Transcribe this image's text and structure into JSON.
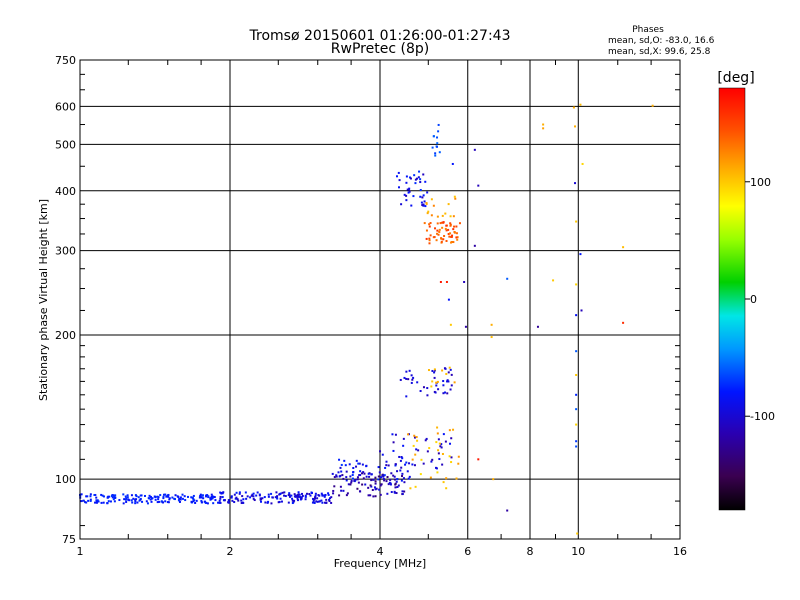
{
  "chart_data": {
    "type": "scatter",
    "title": "Tromsø 20150601 01:26:00-01:27:43",
    "subtitle": "RwPretec (8p)",
    "xlabel": "Frequency [MHz]",
    "ylabel": "Stationary phase Virtual Height [km]",
    "x_scale": "log",
    "y_scale": "log",
    "xlim": [
      1,
      16
    ],
    "ylim": [
      75,
      750
    ],
    "x_ticks": [
      1,
      2,
      4,
      6,
      8,
      10,
      16
    ],
    "x_tick_labels": [
      "1",
      "2",
      "4",
      "6",
      "8",
      "10",
      "16"
    ],
    "y_ticks": [
      75,
      100,
      200,
      300,
      400,
      500,
      600,
      750
    ],
    "y_tick_labels": [
      "75",
      "100",
      "200",
      "300",
      "400",
      "500",
      "600",
      "750"
    ],
    "grid": true,
    "info": {
      "heading": "Phases",
      "line_o": "mean, sd,O: -83.0, 16.6",
      "line_x": "mean, sd,X:  99.6, 25.8"
    },
    "colorbar": {
      "label": "[deg]",
      "ticks": [
        100,
        0,
        -100
      ],
      "tick_labels": [
        "100",
        "0",
        "-100"
      ],
      "range": [
        -180,
        180
      ]
    },
    "clusters": [
      {
        "f": [
          1.0,
          1.9
        ],
        "h": [
          89,
          93
        ],
        "phase": [
          -85,
          -70
        ],
        "n": 180
      },
      {
        "f": [
          1.9,
          3.2
        ],
        "h": [
          89,
          94
        ],
        "phase": [
          -110,
          -75
        ],
        "n": 160
      },
      {
        "f": [
          3.2,
          4.5
        ],
        "h": [
          92,
          103
        ],
        "phase": [
          -140,
          -90
        ],
        "n": 90
      },
      {
        "f": [
          3.3,
          4.6
        ],
        "h": [
          99,
          110
        ],
        "phase": [
          -110,
          -70
        ],
        "n": 60
      },
      {
        "f": [
          4.0,
          5.6
        ],
        "h": [
          104,
          125
        ],
        "phase": [
          -120,
          -80
        ],
        "n": 40
      },
      {
        "f": [
          4.4,
          5.6
        ],
        "h": [
          148,
          172
        ],
        "phase": [
          -120,
          -85
        ],
        "n": 40
      },
      {
        "f": [
          4.3,
          5.0
        ],
        "h": [
          370,
          440
        ],
        "phase": [
          -110,
          -70
        ],
        "n": 40
      },
      {
        "f": [
          4.9,
          5.8
        ],
        "h": [
          310,
          345
        ],
        "phase": [
          125,
          160
        ],
        "n": 60
      },
      {
        "f": [
          4.9,
          5.7
        ],
        "h": [
          350,
          390
        ],
        "phase": [
          100,
          130
        ],
        "n": 15
      },
      {
        "f": [
          4.5,
          5.8
        ],
        "h": [
          95,
          130
        ],
        "phase": [
          90,
          120
        ],
        "n": 30
      },
      {
        "f": [
          5.1,
          5.3
        ],
        "h": [
          470,
          550
        ],
        "phase": [
          -70,
          -55
        ],
        "n": 12
      },
      {
        "f": [
          5.0,
          5.9
        ],
        "h": [
          155,
          180
        ],
        "phase": [
          90,
          115
        ],
        "n": 10
      }
    ],
    "points": [
      {
        "x": 5.3,
        "y": 258,
        "phase": 170
      },
      {
        "x": 5.45,
        "y": 258,
        "phase": 165
      },
      {
        "x": 5.9,
        "y": 258,
        "phase": -110
      },
      {
        "x": 5.6,
        "y": 455,
        "phase": -80
      },
      {
        "x": 5.5,
        "y": 237,
        "phase": -80
      },
      {
        "x": 5.55,
        "y": 210,
        "phase": 100
      },
      {
        "x": 5.95,
        "y": 208,
        "phase": -120
      },
      {
        "x": 6.2,
        "y": 487,
        "phase": -110
      },
      {
        "x": 6.3,
        "y": 410,
        "phase": -110
      },
      {
        "x": 6.2,
        "y": 307,
        "phase": -120
      },
      {
        "x": 6.3,
        "y": 110,
        "phase": 170
      },
      {
        "x": 6.7,
        "y": 210,
        "phase": 110
      },
      {
        "x": 6.7,
        "y": 198,
        "phase": 105
      },
      {
        "x": 6.75,
        "y": 100,
        "phase": 110
      },
      {
        "x": 7.2,
        "y": 262,
        "phase": -60
      },
      {
        "x": 7.2,
        "y": 86,
        "phase": -120
      },
      {
        "x": 8.3,
        "y": 208,
        "phase": -125
      },
      {
        "x": 8.5,
        "y": 550,
        "phase": 110
      },
      {
        "x": 8.5,
        "y": 540,
        "phase": 115
      },
      {
        "x": 8.9,
        "y": 260,
        "phase": 100
      },
      {
        "x": 9.8,
        "y": 597,
        "phase": 110
      },
      {
        "x": 9.85,
        "y": 545,
        "phase": 110
      },
      {
        "x": 9.85,
        "y": 415,
        "phase": -100
      },
      {
        "x": 9.9,
        "y": 345,
        "phase": 100
      },
      {
        "x": 9.9,
        "y": 255,
        "phase": 95
      },
      {
        "x": 9.9,
        "y": 220,
        "phase": -85
      },
      {
        "x": 9.9,
        "y": 185,
        "phase": -60
      },
      {
        "x": 9.9,
        "y": 165,
        "phase": 100
      },
      {
        "x": 9.9,
        "y": 150,
        "phase": -75
      },
      {
        "x": 9.9,
        "y": 140,
        "phase": -60
      },
      {
        "x": 9.9,
        "y": 130,
        "phase": 95
      },
      {
        "x": 9.9,
        "y": 120,
        "phase": -70
      },
      {
        "x": 9.9,
        "y": 117,
        "phase": -65
      },
      {
        "x": 9.95,
        "y": 77,
        "phase": 100
      },
      {
        "x": 10.1,
        "y": 605,
        "phase": 105
      },
      {
        "x": 10.2,
        "y": 455,
        "phase": 95
      },
      {
        "x": 10.1,
        "y": 295,
        "phase": -80
      },
      {
        "x": 10.15,
        "y": 225,
        "phase": -110
      },
      {
        "x": 12.3,
        "y": 305,
        "phase": 105
      },
      {
        "x": 12.3,
        "y": 212,
        "phase": 160
      },
      {
        "x": 14.1,
        "y": 602,
        "phase": 110
      }
    ]
  }
}
